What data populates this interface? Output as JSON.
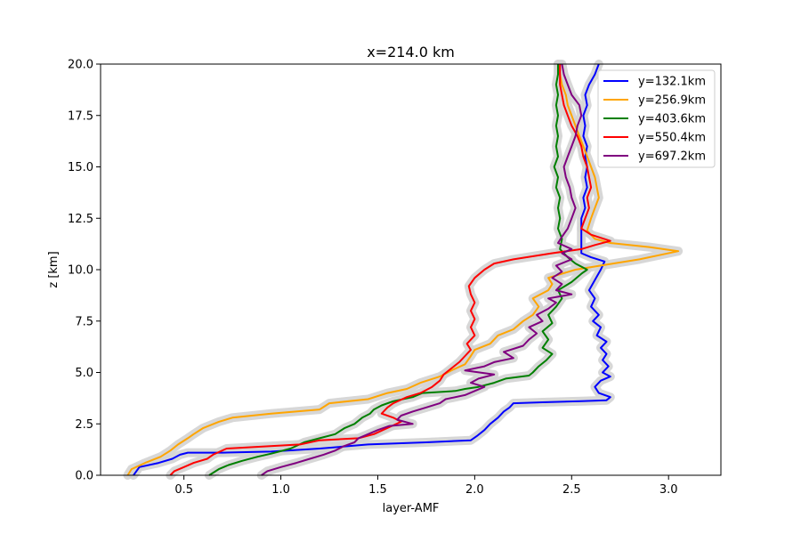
{
  "chart_data": {
    "type": "line",
    "title": "x=214.0 km",
    "xlabel": "layer-AMF",
    "ylabel": "z [km]",
    "xlim": [
      0.07,
      3.27
    ],
    "ylim": [
      0,
      20
    ],
    "xticks": [
      0.5,
      1.0,
      1.5,
      2.0,
      2.5,
      3.0
    ],
    "xtick_labels": [
      "0.5",
      "1.0",
      "1.5",
      "2.0",
      "2.5",
      "3.0"
    ],
    "yticks": [
      0,
      2.5,
      5,
      7.5,
      10,
      12.5,
      15,
      17.5,
      20
    ],
    "ytick_labels": [
      "0.0",
      "2.5",
      "5.0",
      "7.5",
      "10.0",
      "12.5",
      "15.0",
      "17.5",
      "20.0"
    ],
    "grid": false,
    "legend_position": "top-right",
    "band_color": "#d3d3d3",
    "series": [
      {
        "name": "y=132.1km",
        "color": "#0000ff",
        "points": [
          [
            0.24,
            0
          ],
          [
            0.27,
            0.4
          ],
          [
            0.37,
            0.6
          ],
          [
            0.44,
            0.8
          ],
          [
            0.48,
            1.0
          ],
          [
            0.52,
            1.1
          ],
          [
            0.7,
            1.1
          ],
          [
            0.95,
            1.15
          ],
          [
            1.2,
            1.3
          ],
          [
            1.45,
            1.5
          ],
          [
            1.75,
            1.6
          ],
          [
            1.98,
            1.7
          ],
          [
            2.01,
            1.9
          ],
          [
            2.05,
            2.2
          ],
          [
            2.08,
            2.5
          ],
          [
            2.12,
            2.8
          ],
          [
            2.15,
            3.1
          ],
          [
            2.18,
            3.3
          ],
          [
            2.2,
            3.5
          ],
          [
            2.35,
            3.55
          ],
          [
            2.55,
            3.6
          ],
          [
            2.68,
            3.65
          ],
          [
            2.7,
            3.8
          ],
          [
            2.64,
            4.0
          ],
          [
            2.62,
            4.3
          ],
          [
            2.65,
            4.6
          ],
          [
            2.7,
            4.8
          ],
          [
            2.66,
            5.0
          ],
          [
            2.69,
            5.3
          ],
          [
            2.66,
            5.6
          ],
          [
            2.68,
            5.9
          ],
          [
            2.65,
            6.2
          ],
          [
            2.68,
            6.5
          ],
          [
            2.63,
            6.8
          ],
          [
            2.65,
            7.2
          ],
          [
            2.61,
            7.5
          ],
          [
            2.64,
            7.8
          ],
          [
            2.6,
            8.2
          ],
          [
            2.62,
            8.6
          ],
          [
            2.59,
            9.0
          ],
          [
            2.62,
            9.5
          ],
          [
            2.65,
            10.0
          ],
          [
            2.67,
            10.4
          ],
          [
            2.6,
            10.6
          ],
          [
            2.55,
            10.8
          ],
          [
            2.55,
            11.3
          ],
          [
            2.55,
            12.0
          ],
          [
            2.55,
            12.5
          ],
          [
            2.57,
            13.0
          ],
          [
            2.56,
            13.5
          ],
          [
            2.58,
            14.0
          ],
          [
            2.57,
            14.5
          ],
          [
            2.58,
            15.0
          ],
          [
            2.57,
            15.5
          ],
          [
            2.58,
            16.0
          ],
          [
            2.56,
            16.5
          ],
          [
            2.57,
            17.0
          ],
          [
            2.56,
            17.5
          ],
          [
            2.58,
            18.0
          ],
          [
            2.57,
            18.5
          ],
          [
            2.59,
            19.0
          ],
          [
            2.62,
            19.5
          ],
          [
            2.64,
            20.0
          ]
        ]
      },
      {
        "name": "y=256.9km",
        "color": "#ffa500",
        "points": [
          [
            0.21,
            0
          ],
          [
            0.23,
            0.3
          ],
          [
            0.3,
            0.6
          ],
          [
            0.38,
            0.9
          ],
          [
            0.43,
            1.2
          ],
          [
            0.47,
            1.5
          ],
          [
            0.52,
            1.8
          ],
          [
            0.55,
            2.0
          ],
          [
            0.6,
            2.3
          ],
          [
            0.68,
            2.6
          ],
          [
            0.75,
            2.8
          ],
          [
            0.95,
            3.0
          ],
          [
            1.2,
            3.2
          ],
          [
            1.25,
            3.5
          ],
          [
            1.45,
            3.7
          ],
          [
            1.55,
            4.0
          ],
          [
            1.65,
            4.2
          ],
          [
            1.72,
            4.5
          ],
          [
            1.82,
            4.8
          ],
          [
            1.88,
            5.1
          ],
          [
            1.95,
            5.4
          ],
          [
            1.98,
            5.8
          ],
          [
            2.0,
            6.1
          ],
          [
            2.08,
            6.4
          ],
          [
            2.12,
            6.8
          ],
          [
            2.2,
            7.1
          ],
          [
            2.25,
            7.5
          ],
          [
            2.3,
            7.8
          ],
          [
            2.33,
            8.2
          ],
          [
            2.3,
            8.6
          ],
          [
            2.38,
            9.0
          ],
          [
            2.4,
            9.3
          ],
          [
            2.38,
            9.6
          ],
          [
            2.45,
            9.8
          ],
          [
            2.52,
            10.0
          ],
          [
            2.65,
            10.2
          ],
          [
            2.85,
            10.5
          ],
          [
            3.05,
            10.9
          ],
          [
            2.9,
            11.1
          ],
          [
            2.7,
            11.3
          ],
          [
            2.62,
            11.5
          ],
          [
            2.58,
            11.9
          ],
          [
            2.6,
            12.5
          ],
          [
            2.62,
            13.0
          ],
          [
            2.64,
            13.5
          ],
          [
            2.63,
            14.0
          ],
          [
            2.62,
            14.5
          ],
          [
            2.6,
            15.0
          ],
          [
            2.58,
            15.5
          ],
          [
            2.56,
            16.0
          ],
          [
            2.54,
            16.5
          ],
          [
            2.52,
            17.0
          ],
          [
            2.5,
            17.5
          ],
          [
            2.48,
            18.0
          ],
          [
            2.47,
            18.5
          ],
          [
            2.45,
            19.0
          ],
          [
            2.44,
            19.5
          ],
          [
            2.43,
            20.0
          ]
        ]
      },
      {
        "name": "y=403.6km",
        "color": "#008000",
        "points": [
          [
            0.63,
            0
          ],
          [
            0.68,
            0.3
          ],
          [
            0.73,
            0.5
          ],
          [
            0.8,
            0.7
          ],
          [
            0.88,
            0.9
          ],
          [
            0.95,
            1.05
          ],
          [
            1.05,
            1.3
          ],
          [
            1.12,
            1.6
          ],
          [
            1.2,
            1.8
          ],
          [
            1.28,
            2.0
          ],
          [
            1.33,
            2.3
          ],
          [
            1.38,
            2.5
          ],
          [
            1.42,
            2.8
          ],
          [
            1.46,
            3.0
          ],
          [
            1.48,
            3.2
          ],
          [
            1.52,
            3.4
          ],
          [
            1.58,
            3.6
          ],
          [
            1.68,
            3.8
          ],
          [
            1.73,
            4.0
          ],
          [
            1.9,
            4.1
          ],
          [
            1.95,
            4.2
          ],
          [
            2.02,
            4.3
          ],
          [
            2.1,
            4.5
          ],
          [
            2.16,
            4.7
          ],
          [
            2.28,
            4.85
          ],
          [
            2.3,
            5.0
          ],
          [
            2.33,
            5.3
          ],
          [
            2.37,
            5.6
          ],
          [
            2.4,
            5.9
          ],
          [
            2.35,
            6.2
          ],
          [
            2.38,
            6.6
          ],
          [
            2.35,
            7.0
          ],
          [
            2.4,
            7.4
          ],
          [
            2.38,
            7.8
          ],
          [
            2.42,
            8.2
          ],
          [
            2.45,
            8.6
          ],
          [
            2.43,
            9.0
          ],
          [
            2.5,
            9.4
          ],
          [
            2.55,
            9.8
          ],
          [
            2.58,
            10.0
          ],
          [
            2.52,
            10.3
          ],
          [
            2.48,
            10.6
          ],
          [
            2.44,
            11.0
          ],
          [
            2.45,
            11.5
          ],
          [
            2.43,
            12.0
          ],
          [
            2.44,
            12.5
          ],
          [
            2.43,
            13.0
          ],
          [
            2.44,
            13.5
          ],
          [
            2.42,
            14.0
          ],
          [
            2.43,
            14.5
          ],
          [
            2.41,
            15.0
          ],
          [
            2.43,
            15.5
          ],
          [
            2.42,
            16.0
          ],
          [
            2.43,
            16.5
          ],
          [
            2.42,
            17.0
          ],
          [
            2.43,
            17.5
          ],
          [
            2.42,
            18.0
          ],
          [
            2.43,
            18.5
          ],
          [
            2.42,
            19.0
          ],
          [
            2.43,
            19.5
          ],
          [
            2.43,
            20.0
          ]
        ]
      },
      {
        "name": "y=550.4km",
        "color": "#ff0000",
        "points": [
          [
            0.43,
            0
          ],
          [
            0.45,
            0.2
          ],
          [
            0.5,
            0.4
          ],
          [
            0.55,
            0.6
          ],
          [
            0.62,
            0.8
          ],
          [
            0.65,
            1.0
          ],
          [
            0.72,
            1.3
          ],
          [
            1.1,
            1.5
          ],
          [
            1.2,
            1.7
          ],
          [
            1.4,
            1.8
          ],
          [
            1.48,
            2.0
          ],
          [
            1.55,
            2.3
          ],
          [
            1.62,
            2.6
          ],
          [
            1.58,
            2.8
          ],
          [
            1.52,
            3.0
          ],
          [
            1.55,
            3.3
          ],
          [
            1.58,
            3.5
          ],
          [
            1.65,
            3.8
          ],
          [
            1.72,
            4.0
          ],
          [
            1.78,
            4.3
          ],
          [
            1.82,
            4.6
          ],
          [
            1.84,
            4.9
          ],
          [
            1.88,
            5.2
          ],
          [
            1.92,
            5.5
          ],
          [
            1.95,
            5.8
          ],
          [
            1.98,
            6.1
          ],
          [
            1.96,
            6.4
          ],
          [
            2.0,
            6.8
          ],
          [
            1.98,
            7.2
          ],
          [
            2.0,
            7.6
          ],
          [
            1.98,
            8.0
          ],
          [
            2.0,
            8.4
          ],
          [
            1.98,
            8.8
          ],
          [
            1.97,
            9.2
          ],
          [
            2.0,
            9.6
          ],
          [
            2.05,
            10.0
          ],
          [
            2.1,
            10.3
          ],
          [
            2.2,
            10.5
          ],
          [
            2.4,
            10.8
          ],
          [
            2.55,
            11.0
          ],
          [
            2.62,
            11.2
          ],
          [
            2.7,
            11.4
          ],
          [
            2.6,
            11.7
          ],
          [
            2.55,
            12.0
          ],
          [
            2.57,
            12.5
          ],
          [
            2.59,
            13.0
          ],
          [
            2.58,
            13.5
          ],
          [
            2.6,
            14.0
          ],
          [
            2.59,
            14.5
          ],
          [
            2.58,
            15.0
          ],
          [
            2.56,
            15.5
          ],
          [
            2.55,
            16.0
          ],
          [
            2.53,
            16.5
          ],
          [
            2.5,
            17.0
          ],
          [
            2.48,
            17.5
          ],
          [
            2.46,
            18.0
          ],
          [
            2.45,
            18.5
          ],
          [
            2.44,
            19.0
          ],
          [
            2.44,
            19.5
          ],
          [
            2.44,
            20.0
          ]
        ]
      },
      {
        "name": "y=697.2km",
        "color": "#800080",
        "points": [
          [
            0.9,
            0
          ],
          [
            0.93,
            0.2
          ],
          [
            1.0,
            0.4
          ],
          [
            1.08,
            0.6
          ],
          [
            1.15,
            0.8
          ],
          [
            1.22,
            1.0
          ],
          [
            1.28,
            1.2
          ],
          [
            1.32,
            1.4
          ],
          [
            1.38,
            1.6
          ],
          [
            1.4,
            1.8
          ],
          [
            1.45,
            2.0
          ],
          [
            1.5,
            2.2
          ],
          [
            1.56,
            2.4
          ],
          [
            1.68,
            2.5
          ],
          [
            1.6,
            2.7
          ],
          [
            1.62,
            2.9
          ],
          [
            1.68,
            3.1
          ],
          [
            1.75,
            3.3
          ],
          [
            1.82,
            3.5
          ],
          [
            1.85,
            3.7
          ],
          [
            1.95,
            3.9
          ],
          [
            2.0,
            4.1
          ],
          [
            2.05,
            4.3
          ],
          [
            1.98,
            4.5
          ],
          [
            2.02,
            4.7
          ],
          [
            2.1,
            4.9
          ],
          [
            1.95,
            5.1
          ],
          [
            2.05,
            5.3
          ],
          [
            2.1,
            5.5
          ],
          [
            2.2,
            5.7
          ],
          [
            2.15,
            6.0
          ],
          [
            2.25,
            6.3
          ],
          [
            2.28,
            6.6
          ],
          [
            2.32,
            6.9
          ],
          [
            2.28,
            7.2
          ],
          [
            2.35,
            7.5
          ],
          [
            2.32,
            7.8
          ],
          [
            2.38,
            8.1
          ],
          [
            2.42,
            8.4
          ],
          [
            2.38,
            8.6
          ],
          [
            2.5,
            8.8
          ],
          [
            2.42,
            9.0
          ],
          [
            2.45,
            9.3
          ],
          [
            2.4,
            9.6
          ],
          [
            2.45,
            9.9
          ],
          [
            2.42,
            10.2
          ],
          [
            2.5,
            10.5
          ],
          [
            2.45,
            10.8
          ],
          [
            2.5,
            11.0
          ],
          [
            2.43,
            11.3
          ],
          [
            2.45,
            11.6
          ],
          [
            2.48,
            12.0
          ],
          [
            2.5,
            12.5
          ],
          [
            2.52,
            13.0
          ],
          [
            2.5,
            13.5
          ],
          [
            2.49,
            14.0
          ],
          [
            2.47,
            14.5
          ],
          [
            2.46,
            15.0
          ],
          [
            2.48,
            15.5
          ],
          [
            2.5,
            16.0
          ],
          [
            2.52,
            16.5
          ],
          [
            2.53,
            17.0
          ],
          [
            2.55,
            17.5
          ],
          [
            2.54,
            18.0
          ],
          [
            2.5,
            18.5
          ],
          [
            2.48,
            19.0
          ],
          [
            2.46,
            19.5
          ],
          [
            2.45,
            20.0
          ]
        ]
      }
    ]
  }
}
